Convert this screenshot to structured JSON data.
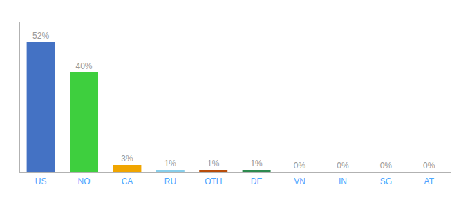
{
  "chart_data": {
    "type": "bar",
    "categories": [
      "US",
      "NO",
      "CA",
      "RU",
      "OTH",
      "DE",
      "VN",
      "IN",
      "SG",
      "AT"
    ],
    "values": [
      52,
      40,
      3,
      1,
      1,
      1,
      0.2,
      0.2,
      0.2,
      0.2
    ],
    "value_labels": [
      "52%",
      "40%",
      "3%",
      "1%",
      "1%",
      "1%",
      "0%",
      "0%",
      "0%",
      "0%"
    ],
    "colors": [
      "#4472c4",
      "#3ecf3e",
      "#f0a500",
      "#87ceeb",
      "#b84c0a",
      "#2d8a4e",
      "#4472c4",
      "#4472c4",
      "#4472c4",
      "#4472c4"
    ],
    "ylim": [
      0,
      60
    ],
    "grid": false,
    "data_labels": true,
    "tick_labels": "x"
  }
}
